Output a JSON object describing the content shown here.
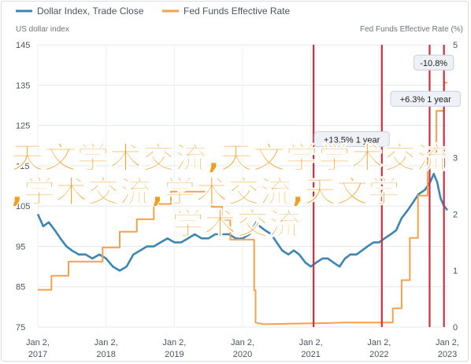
{
  "legend": [
    {
      "name": "Dollar Index, Trade Close",
      "color": "#3c86b5"
    },
    {
      "name": "Fed Funds Effective Rate",
      "color": "#f4a14b"
    }
  ],
  "overlay_text": {
    "line1": "天文学术交流,天文学学术交流",
    "line2": ",学术交流,学术交流,天文学",
    "line3": "学术交流"
  },
  "chart_data": {
    "type": "line",
    "y_left_label": "US dollar index",
    "y_right_label": "Fed Funds Effective Rate (%)",
    "y_left_range": [
      75,
      145
    ],
    "y_left_ticks": [
      75,
      85,
      95,
      105,
      115,
      125,
      135,
      145
    ],
    "y_right_range": [
      0,
      5
    ],
    "y_right_ticks": [
      0,
      1,
      2,
      3,
      4,
      5
    ],
    "x_range": [
      2017.0,
      2023.0
    ],
    "x_ticks": [
      {
        "value": 2017.0,
        "line1": "Jan 2,",
        "line2": "2017"
      },
      {
        "value": 2018.0,
        "line1": "Jan 2,",
        "line2": "2018"
      },
      {
        "value": 2019.0,
        "line1": "Jan 2,",
        "line2": "2019"
      },
      {
        "value": 2020.0,
        "line1": "Jan 2,",
        "line2": "2020"
      },
      {
        "value": 2021.0,
        "line1": "Jan 2,",
        "line2": "2021"
      },
      {
        "value": 2022.0,
        "line1": "Jan 2,",
        "line2": "2022"
      },
      {
        "value": 2023.0,
        "line1": "Jan 2,",
        "line2": "2023"
      }
    ],
    "grid": true,
    "vertical_markers": [
      2021.04,
      2022.04,
      2022.74,
      2022.95
    ],
    "marker_color": "#cc2f3f",
    "annotations": [
      {
        "text": "-10.8%",
        "x": 2022.8,
        "y": 140.5
      },
      {
        "text": "+6.3% 1 year",
        "x": 2022.68,
        "y": 131.5
      },
      {
        "text": "+13.5% 1 year",
        "x": 2021.6,
        "y": 121.5
      }
    ],
    "series": [
      {
        "name": "Dollar Index, Trade Close",
        "axis": "left",
        "color": "#3c86b5",
        "points": [
          [
            2017.0,
            103
          ],
          [
            2017.08,
            100
          ],
          [
            2017.16,
            101
          ],
          [
            2017.25,
            99
          ],
          [
            2017.33,
            97
          ],
          [
            2017.42,
            95
          ],
          [
            2017.5,
            94
          ],
          [
            2017.6,
            93
          ],
          [
            2017.7,
            93
          ],
          [
            2017.8,
            92
          ],
          [
            2017.9,
            93
          ],
          [
            2018.0,
            92
          ],
          [
            2018.1,
            90
          ],
          [
            2018.2,
            89
          ],
          [
            2018.3,
            90
          ],
          [
            2018.4,
            93
          ],
          [
            2018.5,
            94
          ],
          [
            2018.6,
            95
          ],
          [
            2018.7,
            95
          ],
          [
            2018.8,
            96
          ],
          [
            2018.9,
            97
          ],
          [
            2019.0,
            96
          ],
          [
            2019.1,
            96
          ],
          [
            2019.2,
            97
          ],
          [
            2019.3,
            98
          ],
          [
            2019.4,
            97
          ],
          [
            2019.5,
            97
          ],
          [
            2019.6,
            98
          ],
          [
            2019.7,
            98
          ],
          [
            2019.8,
            98
          ],
          [
            2019.9,
            97
          ],
          [
            2020.0,
            97
          ],
          [
            2020.1,
            98
          ],
          [
            2020.2,
            101
          ],
          [
            2020.25,
            100
          ],
          [
            2020.33,
            99
          ],
          [
            2020.42,
            98
          ],
          [
            2020.5,
            96
          ],
          [
            2020.58,
            94
          ],
          [
            2020.67,
            93
          ],
          [
            2020.75,
            94
          ],
          [
            2020.83,
            93
          ],
          [
            2020.92,
            91
          ],
          [
            2021.0,
            90
          ],
          [
            2021.08,
            91
          ],
          [
            2021.17,
            92
          ],
          [
            2021.25,
            92
          ],
          [
            2021.33,
            91
          ],
          [
            2021.42,
            90
          ],
          [
            2021.5,
            92
          ],
          [
            2021.58,
            93
          ],
          [
            2021.67,
            93
          ],
          [
            2021.75,
            94
          ],
          [
            2021.83,
            95
          ],
          [
            2021.92,
            96
          ],
          [
            2022.0,
            96
          ],
          [
            2022.08,
            97
          ],
          [
            2022.17,
            98
          ],
          [
            2022.25,
            99
          ],
          [
            2022.33,
            102
          ],
          [
            2022.42,
            104
          ],
          [
            2022.5,
            106
          ],
          [
            2022.58,
            108
          ],
          [
            2022.67,
            109
          ],
          [
            2022.75,
            111
          ],
          [
            2022.8,
            113
          ],
          [
            2022.85,
            111
          ],
          [
            2022.9,
            107
          ],
          [
            2022.95,
            105
          ],
          [
            2023.0,
            104
          ]
        ]
      },
      {
        "name": "Fed Funds Effective Rate",
        "axis": "right",
        "color": "#f4a14b",
        "points": [
          [
            2017.0,
            0.66
          ],
          [
            2017.2,
            0.66
          ],
          [
            2017.2,
            0.91
          ],
          [
            2017.45,
            0.91
          ],
          [
            2017.45,
            1.16
          ],
          [
            2017.95,
            1.16
          ],
          [
            2017.95,
            1.41
          ],
          [
            2018.2,
            1.41
          ],
          [
            2018.2,
            1.69
          ],
          [
            2018.45,
            1.69
          ],
          [
            2018.45,
            1.91
          ],
          [
            2018.7,
            1.91
          ],
          [
            2018.7,
            2.18
          ],
          [
            2018.95,
            2.18
          ],
          [
            2018.95,
            2.4
          ],
          [
            2019.55,
            2.4
          ],
          [
            2019.55,
            2.13
          ],
          [
            2019.7,
            2.13
          ],
          [
            2019.7,
            1.9
          ],
          [
            2019.82,
            1.9
          ],
          [
            2019.82,
            1.55
          ],
          [
            2020.17,
            1.55
          ],
          [
            2020.17,
            0.65
          ],
          [
            2020.19,
            0.65
          ],
          [
            2020.19,
            0.08
          ],
          [
            2020.3,
            0.05
          ],
          [
            2021.2,
            0.07
          ],
          [
            2021.5,
            0.08
          ],
          [
            2022.2,
            0.08
          ],
          [
            2022.2,
            0.33
          ],
          [
            2022.33,
            0.33
          ],
          [
            2022.33,
            0.83
          ],
          [
            2022.45,
            0.83
          ],
          [
            2022.45,
            1.58
          ],
          [
            2022.57,
            1.58
          ],
          [
            2022.57,
            2.33
          ],
          [
            2022.71,
            2.33
          ],
          [
            2022.71,
            3.08
          ],
          [
            2022.84,
            3.08
          ],
          [
            2022.84,
            3.83
          ],
          [
            2022.95,
            3.83
          ],
          [
            2022.95,
            4.33
          ],
          [
            2023.0,
            4.33
          ]
        ]
      }
    ]
  }
}
